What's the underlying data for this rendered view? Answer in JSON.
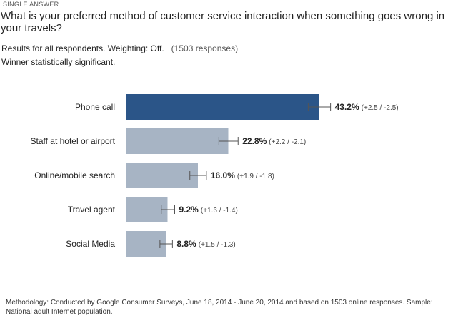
{
  "survey": {
    "question_type": "SINGLE ANSWER",
    "question": "What is your preferred method of customer service interaction when something goes wrong in your travels?",
    "results_text": "Results for all respondents. Weighting: Off.",
    "response_count": "(1503 responses)",
    "winner_text": "Winner statistically significant.",
    "methodology": "Methodology: Conducted by Google Consumer Surveys, June 18, 2014 - June 20, 2014 and based on 1503 online responses. Sample: National adult Internet population."
  },
  "colors": {
    "winner_bar": "#2b5588",
    "other_bar": "#a7b4c4",
    "error_bar": "#555555"
  },
  "chart_data": {
    "type": "bar",
    "orientation": "horizontal",
    "categories": [
      "Phone call",
      "Staff at hotel or airport",
      "Online/mobile search",
      "Travel agent",
      "Social Media"
    ],
    "values": [
      43.2,
      22.8,
      16.0,
      9.2,
      8.8
    ],
    "value_labels": [
      "43.2%",
      "22.8%",
      "16.0%",
      "9.2%",
      "8.8%"
    ],
    "error_plus": [
      2.5,
      2.2,
      1.9,
      1.6,
      1.5
    ],
    "error_minus": [
      2.5,
      2.1,
      1.8,
      1.4,
      1.3
    ],
    "error_labels": [
      "(+2.5 / -2.5)",
      "(+2.2 / -2.1)",
      "(+1.9 / -1.8)",
      "(+1.6 / -1.4)",
      "(+1.5 / -1.3)"
    ],
    "highlight_index": 0,
    "title": "",
    "xlabel": "",
    "ylabel": "",
    "grid": false,
    "xlim": [
      0,
      100
    ]
  }
}
